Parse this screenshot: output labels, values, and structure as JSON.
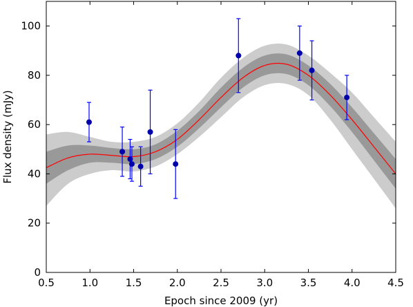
{
  "chart_data": {
    "type": "scatter",
    "xlabel": "Epoch since 2009 (yr)",
    "ylabel": "Flux density (mJy)",
    "xlim": [
      0.5,
      4.5
    ],
    "ylim": [
      0,
      110
    ],
    "xticks": [
      0.5,
      1.0,
      1.5,
      2.0,
      2.5,
      3.0,
      3.5,
      4.0,
      4.5
    ],
    "xtick_labels": [
      "0.5",
      "1.0",
      "1.5",
      "2.0",
      "2.5",
      "3.0",
      "3.5",
      "4.0",
      "4.5"
    ],
    "yticks": [
      0,
      20,
      40,
      60,
      80,
      100
    ],
    "ytick_labels": [
      "0",
      "20",
      "40",
      "60",
      "80",
      "100"
    ],
    "grid": false,
    "colors": {
      "points": "#0000aa",
      "errorbars": "#0000ff",
      "model_line": "#ff0000",
      "band_inner": "#999999",
      "band_outer": "#cccccc"
    },
    "points": [
      {
        "x": 0.99,
        "y": 61,
        "yerr_low": 8,
        "yerr_high": 8
      },
      {
        "x": 1.37,
        "y": 49,
        "yerr_low": 10,
        "yerr_high": 10
      },
      {
        "x": 1.46,
        "y": 46,
        "yerr_low": 8,
        "yerr_high": 8
      },
      {
        "x": 1.48,
        "y": 44,
        "yerr_low": 7,
        "yerr_high": 7
      },
      {
        "x": 1.58,
        "y": 43,
        "yerr_low": 8,
        "yerr_high": 8
      },
      {
        "x": 1.69,
        "y": 57,
        "yerr_low": 17,
        "yerr_high": 17
      },
      {
        "x": 1.98,
        "y": 44,
        "yerr_low": 14,
        "yerr_high": 14
      },
      {
        "x": 2.7,
        "y": 88,
        "yerr_low": 15,
        "yerr_high": 15
      },
      {
        "x": 3.4,
        "y": 89,
        "yerr_low": 11,
        "yerr_high": 11
      },
      {
        "x": 3.54,
        "y": 82,
        "yerr_low": 12,
        "yerr_high": 12
      },
      {
        "x": 3.94,
        "y": 71,
        "yerr_low": 9,
        "yerr_high": 9
      }
    ],
    "model": {
      "x": [
        0.5,
        0.75,
        1.0,
        1.25,
        1.5,
        1.75,
        2.0,
        2.25,
        2.5,
        2.75,
        3.0,
        3.25,
        3.5,
        3.75,
        4.0,
        4.25,
        4.5
      ],
      "y": [
        42.5,
        46.5,
        48.0,
        47.5,
        47.0,
        49.0,
        54.0,
        62.0,
        71.0,
        79.0,
        84.0,
        84.5,
        80.0,
        72.0,
        62.0,
        51.0,
        40.0
      ],
      "inner_low": [
        36.0,
        41.5,
        44.5,
        44.5,
        44.0,
        46.0,
        51.0,
        58.5,
        67.0,
        75.0,
        80.0,
        80.5,
        76.0,
        67.5,
        57.0,
        45.5,
        34.0
      ],
      "inner_high": [
        49.0,
        51.5,
        51.5,
        50.5,
        50.0,
        52.0,
        57.5,
        65.5,
        75.0,
        83.0,
        88.0,
        88.5,
        84.0,
        76.5,
        67.0,
        56.5,
        46.0
      ],
      "outer_low": [
        27.0,
        36.0,
        40.0,
        41.5,
        41.0,
        43.0,
        48.0,
        55.0,
        63.0,
        71.0,
        76.0,
        76.5,
        72.0,
        62.0,
        50.0,
        38.0,
        26.0
      ],
      "outer_high": [
        56.0,
        57.0,
        55.0,
        53.0,
        53.0,
        55.0,
        60.5,
        69.0,
        79.0,
        87.0,
        92.0,
        92.5,
        88.0,
        81.0,
        73.0,
        63.0,
        53.0
      ]
    }
  }
}
